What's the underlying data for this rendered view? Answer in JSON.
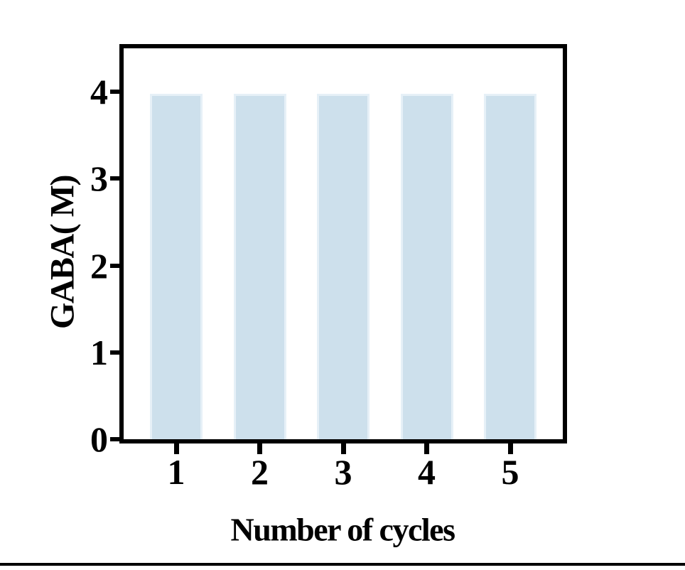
{
  "chart_data": {
    "type": "bar",
    "title": "",
    "categories": [
      "1",
      "2",
      "3",
      "4",
      "5"
    ],
    "values": [
      3.98,
      3.98,
      3.98,
      3.98,
      3.98
    ],
    "xlabel": "Number of cycles",
    "ylabel": "GABA( M)",
    "ylim": [
      0,
      4.5
    ],
    "yticks": [
      0,
      1,
      2,
      3,
      4
    ],
    "grid": false,
    "legend": null,
    "bar_color": "#cde0ec",
    "bar_edge_color": "#e6f0f7",
    "axis_color": "#000000",
    "text_color": "#000000"
  }
}
